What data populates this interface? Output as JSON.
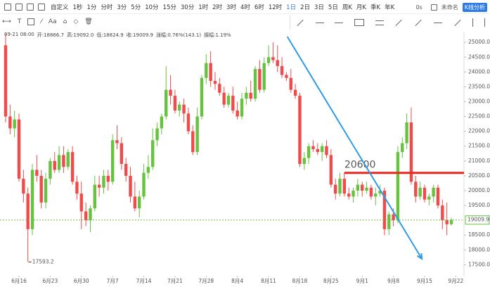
{
  "toolbar": {
    "custom": "自定义",
    "periods": [
      "1秒",
      "1分",
      "分时",
      "3分",
      "5分",
      "10分",
      "15分",
      "30分",
      "1时",
      "2时",
      "3时",
      "4时",
      "6时",
      "12时",
      "1日",
      "2日",
      "3日",
      "5日",
      "周K",
      "月K",
      "季K",
      "年K"
    ],
    "active": "1日",
    "countdown": "0s",
    "layout_name": "未命名",
    "analysis": "K线分析",
    "text_tool": "Aa"
  },
  "info": [
    "09-21 08:00",
    "开:18866.7",
    "高:19092.0",
    "低:18824.9",
    "收:19009.9",
    "涨幅:0.76%(143.1)",
    "振幅:1.19%"
  ],
  "chart_data": {
    "type": "candlestick",
    "up_color": "#66c23f",
    "down_color": "#f04a4a",
    "grid": false,
    "ylim": [
      17130,
      25360
    ],
    "yticks": [
      {
        "value": 17500,
        "label": "17500.0"
      },
      {
        "value": 18000,
        "label": "18000.0"
      },
      {
        "value": 18500,
        "label": "18500.0"
      },
      {
        "value": 19500,
        "label": "19500.0"
      },
      {
        "value": 20000,
        "label": "20000.0"
      },
      {
        "value": 20500,
        "label": "20500.0"
      },
      {
        "value": 21000,
        "label": "21000.0"
      },
      {
        "value": 21500,
        "label": "21500.0"
      },
      {
        "value": 22000,
        "label": "22000.0"
      },
      {
        "value": 22500,
        "label": "22500.0"
      },
      {
        "value": 23000,
        "label": "23000.0"
      },
      {
        "value": 23500,
        "label": "23500.0"
      },
      {
        "value": 24000,
        "label": "24000.0"
      },
      {
        "value": 24500,
        "label": "24500.0"
      },
      {
        "value": 25000,
        "label": "25000.0"
      }
    ],
    "categories": [
      null,
      null,
      null,
      "6月16",
      null,
      null,
      null,
      null,
      null,
      null,
      "6月23",
      null,
      null,
      null,
      null,
      null,
      null,
      "6月30",
      null,
      null,
      null,
      null,
      null,
      null,
      "7月7",
      null,
      null,
      null,
      null,
      null,
      null,
      "7月14",
      null,
      null,
      null,
      null,
      null,
      null,
      "7月21",
      null,
      null,
      null,
      null,
      null,
      null,
      "7月28",
      null,
      null,
      null,
      null,
      null,
      null,
      "8月4",
      null,
      null,
      null,
      null,
      null,
      null,
      "8月11",
      null,
      null,
      null,
      null,
      null,
      null,
      "8月18",
      null,
      null,
      null,
      null,
      null,
      null,
      "8月25",
      null,
      null,
      null,
      null,
      null,
      null,
      "9月1",
      null,
      null,
      null,
      null,
      null,
      null,
      "9月8",
      null,
      null,
      null,
      null,
      null,
      null,
      "9月15",
      null,
      null,
      null,
      null,
      null,
      null,
      "9月22"
    ],
    "candles": [
      [
        24900,
        25300,
        22300,
        22500
      ],
      [
        22500,
        22900,
        21900,
        22100
      ],
      [
        22100,
        22700,
        21800,
        22400
      ],
      [
        22400,
        22600,
        20300,
        20400
      ],
      [
        20400,
        20700,
        19600,
        19900
      ],
      [
        19900,
        20100,
        17593.2,
        18700
      ],
      [
        18700,
        20900,
        18500,
        20700
      ],
      [
        20700,
        21200,
        20300,
        20500
      ],
      [
        20500,
        20700,
        19400,
        19600
      ],
      [
        19600,
        20600,
        19400,
        20400
      ],
      [
        20400,
        21100,
        20200,
        21000
      ],
      [
        21000,
        21300,
        20600,
        20700
      ],
      [
        20700,
        21500,
        20600,
        21200
      ],
      [
        21200,
        21500,
        20600,
        20800
      ],
      [
        20800,
        21400,
        20700,
        21300
      ],
      [
        21300,
        21500,
        20200,
        20300
      ],
      [
        20300,
        20500,
        19700,
        19900
      ],
      [
        19900,
        20300,
        18700,
        19300
      ],
      [
        19300,
        19600,
        18800,
        19000
      ],
      [
        19000,
        19500,
        18600,
        19400
      ],
      [
        19400,
        20500,
        19300,
        20200
      ],
      [
        20200,
        20500,
        19800,
        20100
      ],
      [
        20100,
        20700,
        19900,
        20500
      ],
      [
        20500,
        20700,
        20000,
        20300
      ],
      [
        20300,
        21900,
        20200,
        21700
      ],
      [
        21700,
        22200,
        21400,
        21600
      ],
      [
        21600,
        21800,
        20700,
        20900
      ],
      [
        20900,
        21100,
        20300,
        20500
      ],
      [
        20500,
        20800,
        19600,
        19800
      ],
      [
        19800,
        20300,
        19300,
        19400
      ],
      [
        19400,
        20000,
        19100,
        19800
      ],
      [
        19800,
        20900,
        19700,
        20600
      ],
      [
        20600,
        21200,
        20400,
        20800
      ],
      [
        20800,
        22100,
        20700,
        21700
      ],
      [
        21700,
        22300,
        21500,
        22100
      ],
      [
        22100,
        22600,
        21900,
        22500
      ],
      [
        22500,
        24200,
        22400,
        23400
      ],
      [
        23400,
        23900,
        22900,
        23200
      ],
      [
        23200,
        23400,
        22600,
        22700
      ],
      [
        22700,
        23000,
        22500,
        22900
      ],
      [
        22900,
        23100,
        22300,
        22600
      ],
      [
        22600,
        22800,
        21900,
        22000
      ],
      [
        22000,
        22200,
        21200,
        21300
      ],
      [
        21300,
        22800,
        21200,
        22500
      ],
      [
        22500,
        23900,
        22400,
        23800
      ],
      [
        23800,
        24600,
        23600,
        24300
      ],
      [
        24300,
        24700,
        23500,
        23700
      ],
      [
        23700,
        24000,
        23400,
        23600
      ],
      [
        23600,
        23800,
        23200,
        23300
      ],
      [
        23300,
        23500,
        22800,
        22900
      ],
      [
        22900,
        23300,
        22800,
        23200
      ],
      [
        23200,
        23500,
        22600,
        22700
      ],
      [
        22700,
        23000,
        22400,
        22500
      ],
      [
        22500,
        23300,
        22400,
        23100
      ],
      [
        23100,
        23500,
        22900,
        23300
      ],
      [
        23300,
        23700,
        23000,
        23100
      ],
      [
        23100,
        24200,
        23000,
        24100
      ],
      [
        24100,
        24400,
        23300,
        23400
      ],
      [
        23400,
        24500,
        23300,
        24300
      ],
      [
        24300,
        24900,
        24200,
        24500
      ],
      [
        24500,
        25000,
        24300,
        24400
      ],
      [
        24400,
        24900,
        24000,
        24200
      ],
      [
        24200,
        24500,
        23800,
        23900
      ],
      [
        23900,
        24000,
        23700,
        23800
      ],
      [
        23800,
        24100,
        23300,
        23400
      ],
      [
        23400,
        23600,
        23100,
        23200
      ],
      [
        23200,
        23300,
        20800,
        20900
      ],
      [
        20900,
        21300,
        20700,
        21100
      ],
      [
        21100,
        21600,
        20900,
        21500
      ],
      [
        21500,
        21700,
        21300,
        21400
      ],
      [
        21400,
        21600,
        21200,
        21300
      ],
      [
        21300,
        21600,
        21000,
        21500
      ],
      [
        21500,
        21700,
        21100,
        21200
      ],
      [
        21200,
        21400,
        20100,
        20200
      ],
      [
        20200,
        20400,
        19700,
        19900
      ],
      [
        19900,
        20600,
        19800,
        20400
      ],
      [
        20400,
        20600,
        19800,
        19900
      ],
      [
        19900,
        20100,
        19700,
        19800
      ],
      [
        19800,
        20100,
        19600,
        20000
      ],
      [
        20000,
        20400,
        19800,
        20200
      ],
      [
        20200,
        20300,
        19800,
        20000
      ],
      [
        20000,
        20300,
        19900,
        20100
      ],
      [
        20100,
        20200,
        19700,
        19800
      ],
      [
        19800,
        20100,
        19500,
        19900
      ],
      [
        19900,
        20200,
        19800,
        20000
      ],
      [
        20000,
        20100,
        18500,
        18700
      ],
      [
        18700,
        19300,
        18500,
        19200
      ],
      [
        19200,
        19400,
        18800,
        19000
      ],
      [
        19000,
        21500,
        18900,
        21300
      ],
      [
        21300,
        21800,
        21100,
        21600
      ],
      [
        21600,
        22600,
        21400,
        22300
      ],
      [
        22300,
        22800,
        20200,
        20300
      ],
      [
        20300,
        20500,
        19600,
        19800
      ],
      [
        19800,
        20300,
        19700,
        20100
      ],
      [
        20100,
        20200,
        19600,
        19700
      ],
      [
        19700,
        19900,
        19500,
        19800
      ],
      [
        19800,
        20200,
        19600,
        20100
      ],
      [
        20100,
        20200,
        19400,
        19500
      ],
      [
        19500,
        19700,
        18700,
        19000
      ],
      [
        19000,
        19600,
        18500,
        18866.7
      ],
      [
        18866.7,
        19092.0,
        18824.9,
        19009.9
      ],
      null
    ],
    "level": {
      "value": 20600,
      "from_index": 76,
      "color": "#e8281e"
    },
    "trendline": {
      "points": [
        [
          63.2,
          25190
        ],
        [
          93.4,
          17700
        ]
      ],
      "color": "#2e9be6"
    }
  }
}
